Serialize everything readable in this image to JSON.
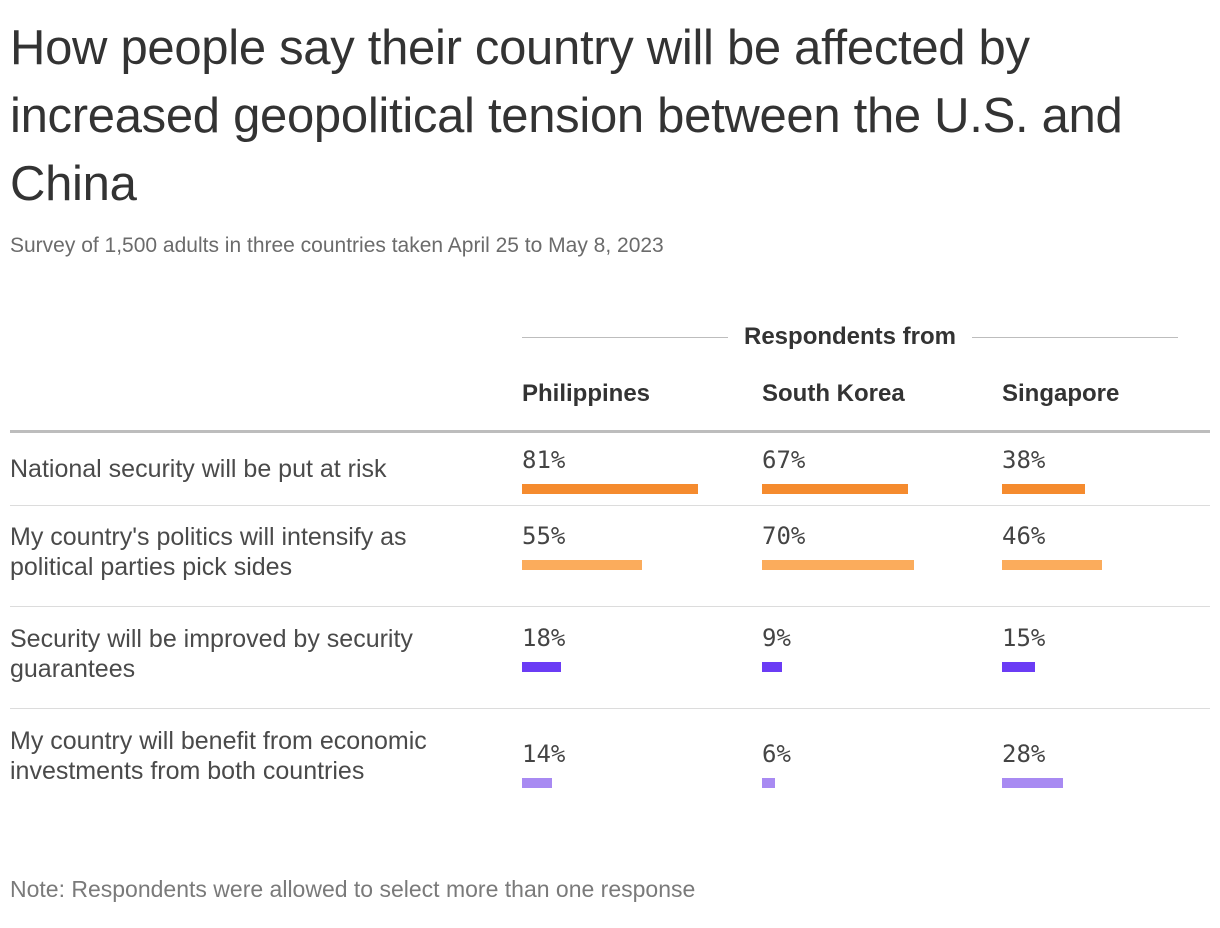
{
  "title": "How people say their country will be affected by increased geopolitical tension between the U.S. and China",
  "subtitle": "Survey of 1,500 adults in three countries taken April 25 to May 8, 2023",
  "group_header": "Respondents from",
  "note": "Note: Respondents were allowed to select more than one response",
  "colors": {
    "row1": "#f58b2e",
    "row2": "#fbac5c",
    "row3": "#6b3cf5",
    "row4": "#a88af2"
  },
  "chart_data": {
    "type": "table",
    "title": "How people say their country will be affected by increased geopolitical tension between the U.S. and China",
    "columns": [
      "Philippines",
      "South Korea",
      "Singapore"
    ],
    "rows": [
      {
        "label": "National security will be put at risk",
        "values": [
          81,
          67,
          38
        ],
        "display": [
          "81%",
          "67%",
          "38%"
        ]
      },
      {
        "label": "My country's politics will intensify as political parties pick sides",
        "values": [
          55,
          70,
          46
        ],
        "display": [
          "55%",
          "70%",
          "46%"
        ]
      },
      {
        "label": "Security will be improved by security guarantees",
        "values": [
          18,
          9,
          15
        ],
        "display": [
          "18%",
          "9%",
          "15%"
        ]
      },
      {
        "label": "My country will benefit from economic investments from both countries",
        "values": [
          14,
          6,
          28
        ],
        "display": [
          "14%",
          "6%",
          "28%"
        ]
      }
    ],
    "unit": "%"
  }
}
